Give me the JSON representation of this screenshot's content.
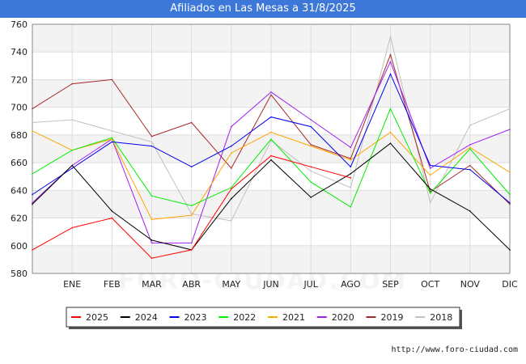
{
  "header": {
    "title": "Afiliados en Las Mesas a 31/8/2025"
  },
  "footer": {
    "url": "http://www.foro-ciudad.com"
  },
  "watermark": "FORO-CIUDAD.COM",
  "chart_data": {
    "type": "line",
    "title": "Afiliados en Las Mesas a 31/8/2025",
    "xlabel": "",
    "ylabel": "",
    "categories": [
      "",
      "ENE",
      "FEB",
      "MAR",
      "ABR",
      "MAY",
      "JUN",
      "JUL",
      "AGO",
      "SEP",
      "OCT",
      "NOV",
      "DIC"
    ],
    "ylim": [
      580,
      760
    ],
    "yticks": [
      580,
      600,
      620,
      640,
      660,
      680,
      700,
      720,
      740,
      760
    ],
    "grid": true,
    "legend_position": "bottom",
    "series": [
      {
        "name": "2018",
        "color": "#c0c0c0",
        "values": [
          689,
          691,
          683,
          675,
          623,
          618,
          676,
          654,
          642,
          751,
          631,
          687,
          699
        ]
      },
      {
        "name": "2019",
        "color": "#a52a2a",
        "values": [
          699,
          717,
          720,
          679,
          689,
          656,
          709,
          673,
          663,
          738,
          639,
          658,
          630
        ]
      },
      {
        "name": "2020",
        "color": "#a020f0",
        "values": [
          631,
          658,
          677,
          602,
          602,
          686,
          711,
          691,
          671,
          733,
          656,
          673,
          684
        ]
      },
      {
        "name": "2021",
        "color": "#ffa500",
        "values": [
          683,
          669,
          677,
          619,
          622,
          667,
          682,
          672,
          662,
          682,
          651,
          671,
          653
        ]
      },
      {
        "name": "2022",
        "color": "#00ee00",
        "values": [
          652,
          669,
          678,
          636,
          629,
          642,
          677,
          646,
          628,
          699,
          638,
          670,
          637
        ]
      },
      {
        "name": "2023",
        "color": "#0000ee",
        "values": [
          637,
          656,
          675,
          672,
          657,
          672,
          693,
          686,
          657,
          724,
          658,
          655,
          631
        ]
      },
      {
        "name": "2024",
        "color": "#000000",
        "values": [
          630,
          658,
          625,
          604,
          597,
          634,
          662,
          635,
          652,
          674,
          641,
          625,
          597
        ]
      },
      {
        "name": "2025",
        "color": "#ff0000",
        "values": [
          597,
          613,
          620,
          591,
          597,
          641,
          665,
          657,
          649,
          null,
          null,
          null,
          null
        ]
      }
    ],
    "legend_order": [
      "2025",
      "2024",
      "2023",
      "2022",
      "2021",
      "2020",
      "2019",
      "2018"
    ]
  }
}
